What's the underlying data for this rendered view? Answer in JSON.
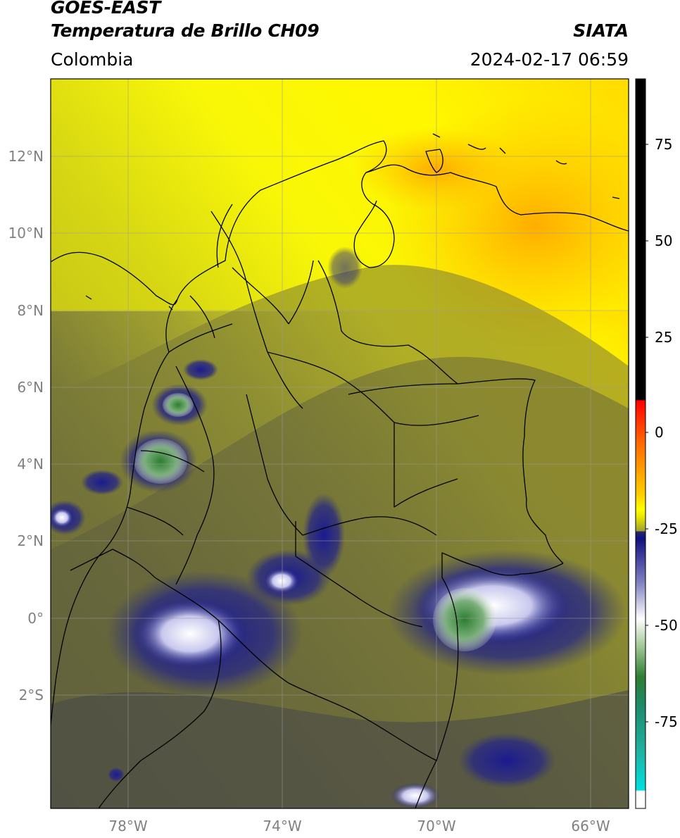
{
  "header": {
    "satellite": "GOES-EAST",
    "product": "Temperatura de Brillo CH09",
    "region": "Colombia",
    "agency": "SIATA",
    "datetime": "2024-02-17 06:59"
  },
  "map": {
    "lat_labels": [
      "12°N",
      "10°N",
      "8°N",
      "6°N",
      "4°N",
      "2°N",
      "0°",
      "2°S"
    ],
    "lon_labels": [
      "78°W",
      "74°W",
      "70°W",
      "66°W"
    ],
    "gridlines": true
  },
  "colorbar": {
    "tick_labels": [
      "75",
      "50",
      "25",
      "0",
      "-25",
      "-50",
      "-75"
    ],
    "colors": {
      "black": "#000000",
      "red": "#ff0000",
      "orange": "#ff9a00",
      "yellow": "#ffff00",
      "olive": "#8e8e36",
      "navy": "#10107e",
      "white": "#ffffff",
      "green": "#2e7d32",
      "cyan": "#00e0e0"
    }
  }
}
